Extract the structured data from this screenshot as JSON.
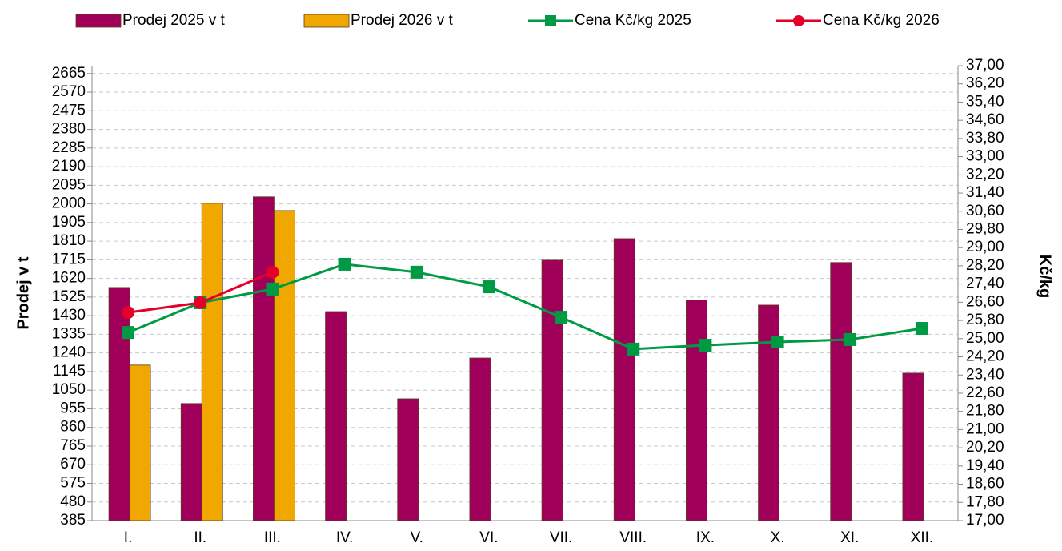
{
  "chart_data": {
    "type": "bar-line",
    "categories": [
      "I.",
      "II.",
      "III.",
      "IV.",
      "V.",
      "VI.",
      "VII.",
      "VIII.",
      "IX.",
      "X.",
      "XI.",
      "XII."
    ],
    "series": [
      {
        "name": "Prodej 2025 v t",
        "type": "bar",
        "color": "#a0005a",
        "values": [
          1574,
          982,
          2036,
          1451,
          1006,
          1214,
          1713,
          1823,
          1509,
          1484,
          1701,
          1137
        ]
      },
      {
        "name": "Prodej 2026 v t",
        "type": "bar",
        "color": "#f0a800",
        "values": [
          1178,
          2003,
          1966,
          null,
          null,
          null,
          null,
          null,
          null,
          null,
          null,
          null
        ]
      },
      {
        "name": "Cena Kč/kg 2025",
        "type": "line",
        "axis": "y2",
        "marker": "square",
        "color": "#009a44",
        "values": [
          25.27,
          26.58,
          27.18,
          28.27,
          27.92,
          27.28,
          25.94,
          24.54,
          24.71,
          24.85,
          24.96,
          25.45
        ]
      },
      {
        "name": "Cena Kč/kg 2026",
        "type": "line",
        "axis": "y2",
        "marker": "circle",
        "color": "#e4002b",
        "values": [
          26.15,
          26.58,
          27.92,
          null,
          null,
          null,
          null,
          null,
          null,
          null,
          null,
          null
        ]
      }
    ],
    "ylabel": "Prodej v t",
    "y2label": "Kč/kg",
    "ylim": [
      385,
      2705
    ],
    "yticks": [
      385,
      480,
      575,
      670,
      765,
      860,
      955,
      1050,
      1145,
      1240,
      1335,
      1430,
      1525,
      1620,
      1715,
      1810,
      1905,
      2000,
      2095,
      2190,
      2285,
      2380,
      2475,
      2570,
      2665
    ],
    "y2lim": [
      17,
      37
    ],
    "y2ticks": [
      {
        "value": 17,
        "label": "17,00"
      },
      {
        "value": 17.8,
        "label": "17,80"
      },
      {
        "value": 18.6,
        "label": "18,60"
      },
      {
        "value": 19.4,
        "label": "19,40"
      },
      {
        "value": 20.2,
        "label": "20,20"
      },
      {
        "value": 21,
        "label": "21,00"
      },
      {
        "value": 21.8,
        "label": "21,80"
      },
      {
        "value": 22.6,
        "label": "22,60"
      },
      {
        "value": 23.4,
        "label": "23,40"
      },
      {
        "value": 24.2,
        "label": "24,20"
      },
      {
        "value": 25,
        "label": "25,00"
      },
      {
        "value": 25.8,
        "label": "25,80"
      },
      {
        "value": 26.6,
        "label": "26,60"
      },
      {
        "value": 27.4,
        "label": "27,40"
      },
      {
        "value": 28.2,
        "label": "28,20"
      },
      {
        "value": 29,
        "label": "29,00"
      },
      {
        "value": 29.8,
        "label": "29,80"
      },
      {
        "value": 30.6,
        "label": "30,60"
      },
      {
        "value": 31.4,
        "label": "31,40"
      },
      {
        "value": 32.2,
        "label": "32,20"
      },
      {
        "value": 33,
        "label": "33,00"
      },
      {
        "value": 33.8,
        "label": "33,80"
      },
      {
        "value": 34.6,
        "label": "34,60"
      },
      {
        "value": 35.4,
        "label": "35,40"
      },
      {
        "value": 36.2,
        "label": "36,20"
      },
      {
        "value": 37,
        "label": "37,00"
      }
    ],
    "grid": true,
    "legend": "top"
  }
}
